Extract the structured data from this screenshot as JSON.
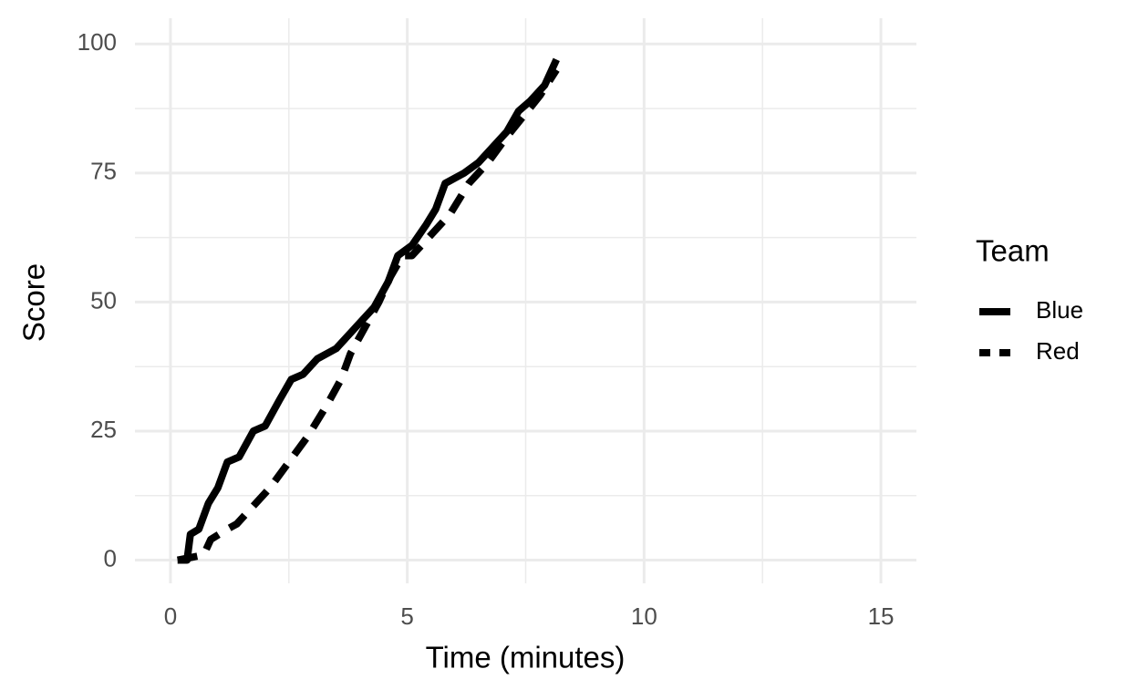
{
  "chart_data": {
    "type": "line",
    "x_label": "Time (minutes)",
    "y_label": "Score",
    "legend_title": "Team",
    "legend_position": "right",
    "xlim": [
      -0.75,
      15.75
    ],
    "ylim": [
      -4.5,
      105
    ],
    "xticks": [
      0,
      5,
      10,
      15
    ],
    "yticks": [
      0,
      25,
      50,
      75,
      100
    ],
    "x_minor_grid": [
      2.5,
      7.5,
      12.5
    ],
    "y_minor_grid": [
      12.5,
      37.5,
      62.5,
      87.5
    ],
    "grid": true,
    "series": [
      {
        "name": "Blue",
        "color": "#000000",
        "linetype": "solid",
        "x": [
          0.15,
          0.35,
          0.42,
          0.6,
          0.8,
          1.0,
          1.2,
          1.45,
          1.75,
          2.0,
          2.3,
          2.55,
          2.8,
          3.1,
          3.5,
          3.9,
          4.3,
          4.6,
          4.8,
          5.1,
          5.4,
          5.6,
          5.8,
          6.2,
          6.5,
          6.8,
          7.1,
          7.35,
          7.6,
          7.9,
          8.15
        ],
        "values": [
          0,
          0,
          5,
          6,
          11,
          14,
          19,
          20,
          25,
          26,
          31,
          35,
          36,
          39,
          41,
          45,
          49,
          54,
          59,
          61,
          65,
          68,
          73,
          75,
          77,
          80,
          83,
          87,
          89,
          92,
          97
        ]
      },
      {
        "name": "Red",
        "color": "#000000",
        "linetype": "dashed",
        "x": [
          0.15,
          0.7,
          0.85,
          1.2,
          1.4,
          1.7,
          2.1,
          2.5,
          2.9,
          3.3,
          3.6,
          3.8,
          4.1,
          4.4,
          4.65,
          4.9,
          5.1,
          5.5,
          5.9,
          6.3,
          6.7,
          7.1,
          7.45,
          7.8,
          8.15
        ],
        "values": [
          0,
          1,
          4,
          6,
          7,
          10,
          14,
          19,
          24,
          30,
          35,
          40,
          45,
          50,
          55,
          59,
          59,
          63,
          67,
          73,
          77,
          82,
          86,
          90,
          95
        ]
      }
    ]
  }
}
